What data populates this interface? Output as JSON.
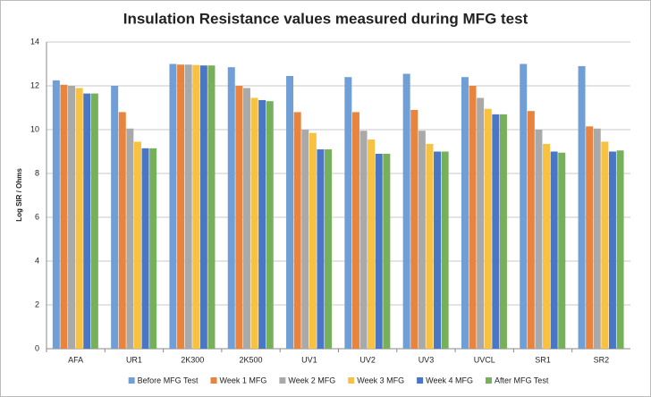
{
  "chart_data": {
    "type": "bar",
    "title": "Insulation Resistance values measured during MFG test",
    "y_label": "Log SIR / Ohms",
    "categories": [
      "AFA",
      "UR1",
      "2K300",
      "2K500",
      "UV1",
      "UV2",
      "UV3",
      "UVCL",
      "SR1",
      "SR2"
    ],
    "series": [
      {
        "name": "Before MFG Test",
        "color": "#6f9fd6",
        "values": [
          12.25,
          12.0,
          13.0,
          12.85,
          12.45,
          12.4,
          12.55,
          12.4,
          13.0,
          12.9
        ]
      },
      {
        "name": "Week 1 MFG",
        "color": "#e8843e",
        "values": [
          12.05,
          10.8,
          12.97,
          12.0,
          10.8,
          10.8,
          10.9,
          12.0,
          10.85,
          10.15
        ]
      },
      {
        "name": "Week 2 MFG",
        "color": "#a9a9a9",
        "values": [
          12.0,
          10.05,
          12.97,
          11.9,
          10.0,
          9.95,
          9.95,
          11.45,
          10.0,
          10.05
        ]
      },
      {
        "name": "Week 3 MFG",
        "color": "#f8c13f",
        "values": [
          11.9,
          9.45,
          12.95,
          11.45,
          9.85,
          9.55,
          9.35,
          10.95,
          9.35,
          9.45
        ]
      },
      {
        "name": "Week 4 MFG",
        "color": "#4a76c6",
        "values": [
          11.65,
          9.15,
          12.93,
          11.35,
          9.1,
          8.9,
          9.0,
          10.7,
          9.0,
          9.0
        ]
      },
      {
        "name": "After MFG Test",
        "color": "#77b05a",
        "values": [
          11.65,
          9.15,
          12.93,
          11.3,
          9.1,
          8.9,
          9.0,
          10.7,
          8.95,
          9.05
        ]
      }
    ],
    "ylim": [
      0,
      14
    ],
    "yticks": [
      0,
      2,
      4,
      6,
      8,
      10,
      12,
      14
    ],
    "grid": true,
    "legend": "bottom"
  }
}
